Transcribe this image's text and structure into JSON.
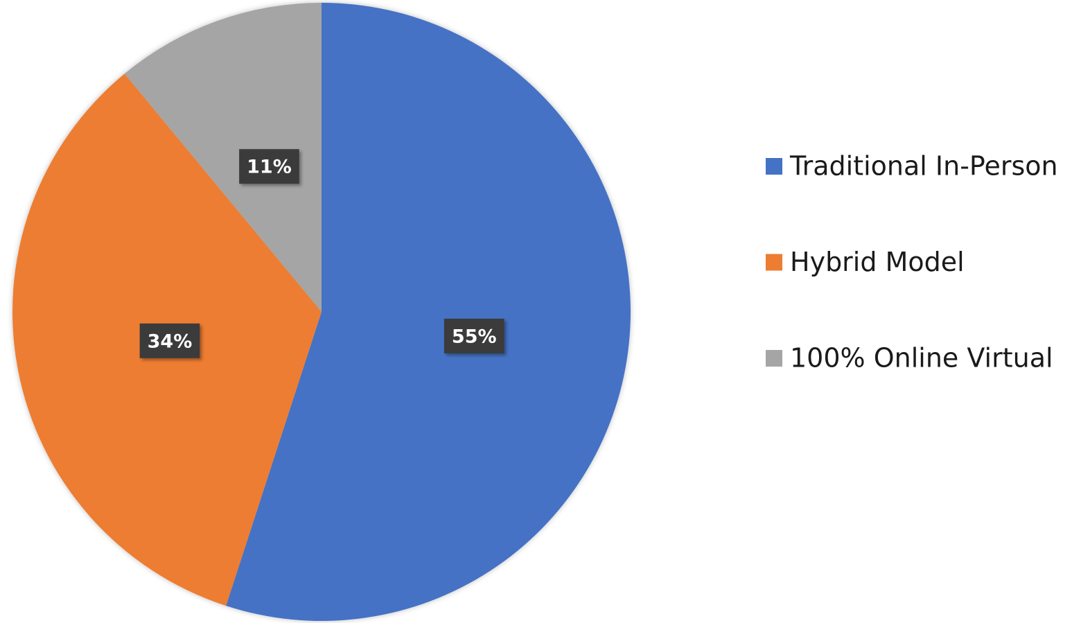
{
  "chart_data": {
    "type": "pie",
    "categories": [
      "Traditional In-Person",
      "Hybrid Model",
      "100% Online Virtual"
    ],
    "values": [
      55,
      34,
      11
    ],
    "value_labels": [
      "55%",
      "34%",
      "11%"
    ],
    "colors": [
      "#4472c4",
      "#ed7d31",
      "#a5a5a5"
    ],
    "legend": "right"
  }
}
